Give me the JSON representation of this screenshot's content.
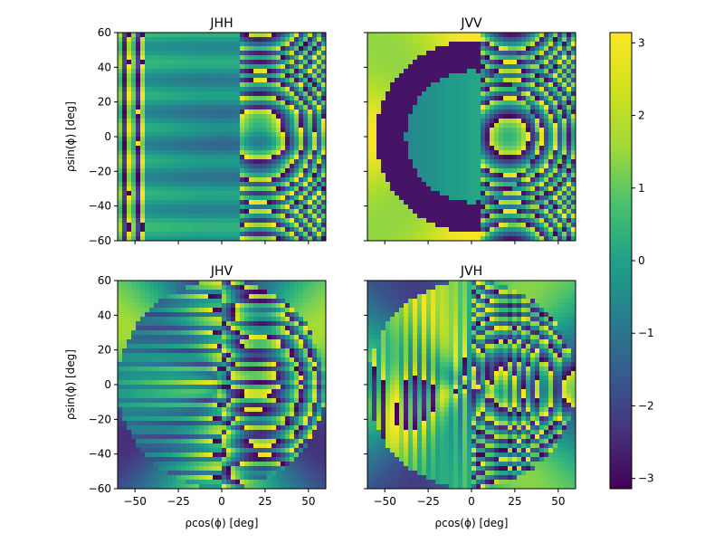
{
  "chart_data": {
    "type": "heatmap",
    "colormap": "viridis",
    "colorbar": {
      "range": [
        -3.14159,
        3.14159
      ],
      "ticks": [
        "3",
        "2",
        "1",
        "0",
        "−1",
        "−2",
        "−3"
      ],
      "tick_values": [
        3,
        2,
        1,
        0,
        -1,
        -2,
        -3
      ]
    },
    "axes": {
      "x_range": [
        -60,
        60
      ],
      "y_range": [
        -60,
        60
      ],
      "x_ticks": [
        "−50",
        "−25",
        "0",
        "25",
        "50"
      ],
      "x_tick_values": [
        -50,
        -25,
        0,
        25,
        50
      ],
      "y_ticks": [
        "60",
        "40",
        "20",
        "0",
        "−20",
        "−40",
        "−60"
      ],
      "y_tick_values": [
        60,
        40,
        20,
        0,
        -20,
        -40,
        -60
      ],
      "xlabel": "ρcos(ϕ) [deg]",
      "ylabel": "ρsin(ϕ) [deg]"
    },
    "panels": [
      {
        "title": "JHH",
        "variant": 0
      },
      {
        "title": "JVV",
        "variant": 1
      },
      {
        "title": "JHV",
        "variant": 2
      },
      {
        "title": "JVH",
        "variant": 3
      }
    ]
  }
}
